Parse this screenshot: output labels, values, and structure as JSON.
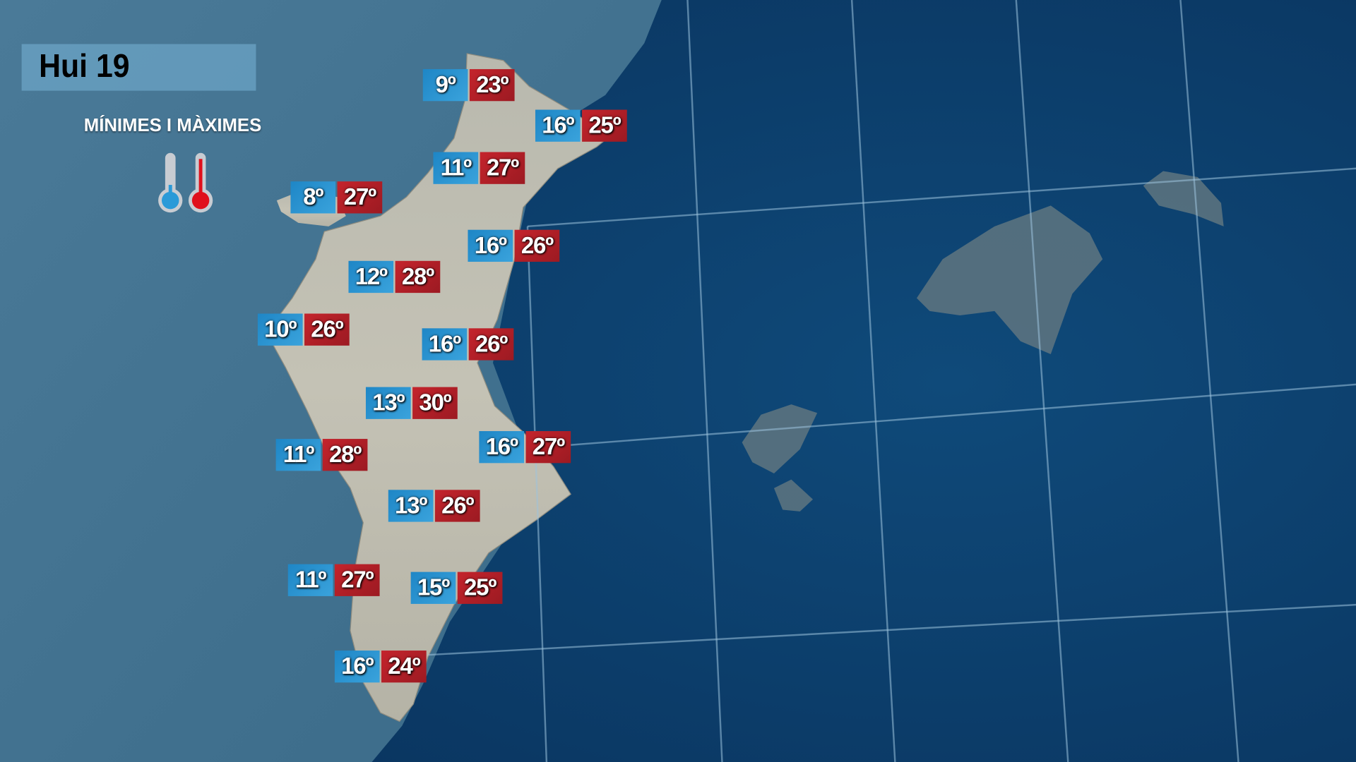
{
  "header": {
    "title": "Hui 19"
  },
  "legend": {
    "label": "MÍNIMES I MÀXIMES",
    "min_icon": "thermometer-cold-icon",
    "max_icon": "thermometer-hot-icon",
    "min_color": "#2a9ad8",
    "max_color": "#e0101c"
  },
  "temperatures": [
    {
      "min": "9º",
      "max": "23º"
    },
    {
      "min": "16º",
      "max": "25º"
    },
    {
      "min": "11º",
      "max": "27º"
    },
    {
      "min": "8º",
      "max": "27º"
    },
    {
      "min": "16º",
      "max": "26º"
    },
    {
      "min": "12º",
      "max": "28º"
    },
    {
      "min": "10º",
      "max": "26º"
    },
    {
      "min": "16º",
      "max": "26º"
    },
    {
      "min": "13º",
      "max": "30º"
    },
    {
      "min": "11º",
      "max": "28º"
    },
    {
      "min": "16º",
      "max": "27º"
    },
    {
      "min": "13º",
      "max": "26º"
    },
    {
      "min": "11º",
      "max": "27º"
    },
    {
      "min": "15º",
      "max": "25º"
    },
    {
      "min": "16º",
      "max": "24º"
    }
  ]
}
